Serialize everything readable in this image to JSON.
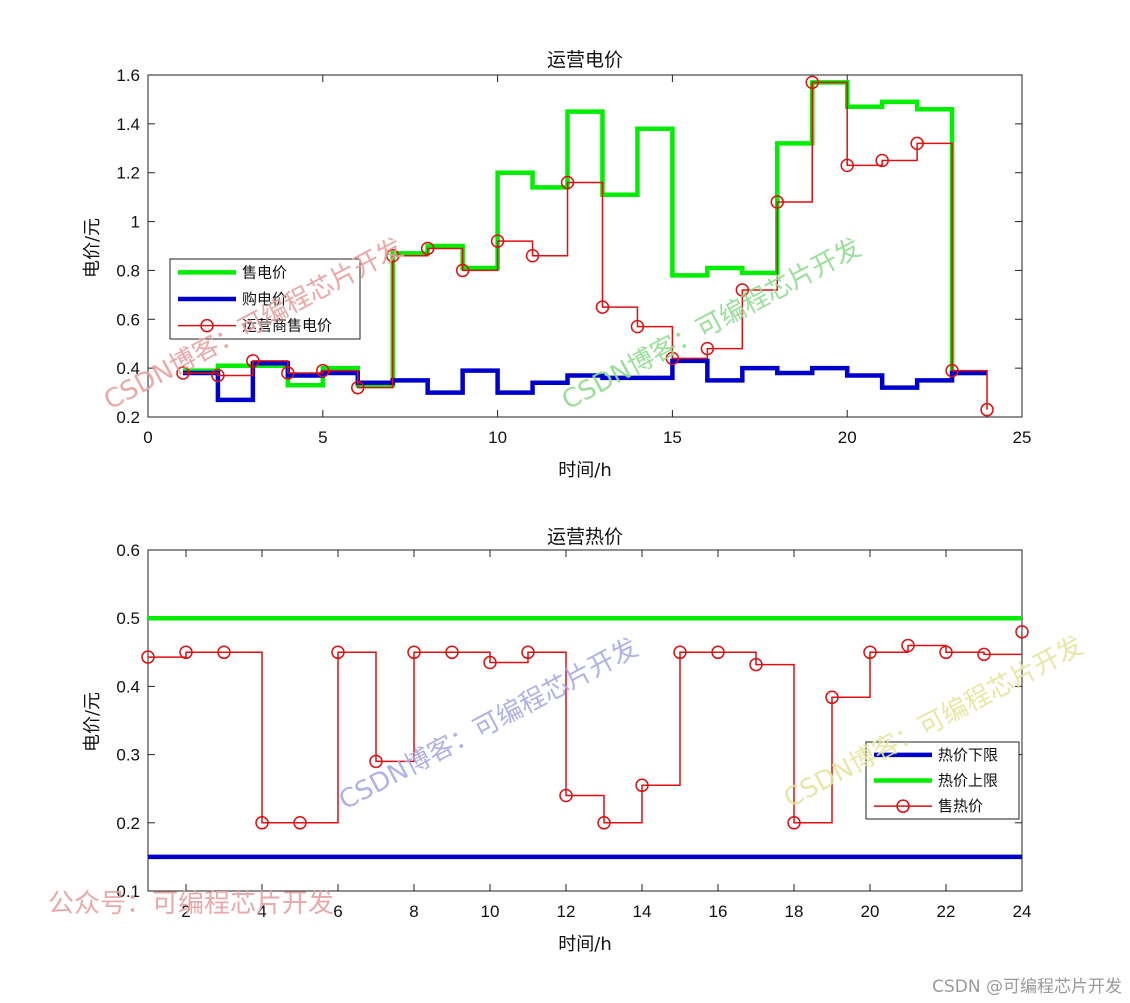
{
  "chart_data": [
    {
      "type": "line",
      "title": "运营电价",
      "xlabel": "时间/h",
      "ylabel": "电价/元",
      "xlim": [
        0,
        25
      ],
      "ylim": [
        0.2,
        1.6
      ],
      "xticks": [
        "0",
        "5",
        "10",
        "15",
        "20",
        "25"
      ],
      "yticks": [
        "0.2",
        "0.4",
        "0.6",
        "0.8",
        "1",
        "1.2",
        "1.4",
        "1.6"
      ],
      "grid": false,
      "legend_position": "left-middle",
      "x": [
        1,
        2,
        3,
        4,
        5,
        6,
        7,
        8,
        9,
        10,
        11,
        12,
        13,
        14,
        15,
        16,
        17,
        18,
        19,
        20,
        21,
        22,
        23,
        24
      ],
      "series": [
        {
          "name": "售电价",
          "style": "stairs",
          "color": "#00ee00",
          "values": [
            0.39,
            0.41,
            0.41,
            0.33,
            0.4,
            0.33,
            0.87,
            0.9,
            0.81,
            1.2,
            1.14,
            1.45,
            1.11,
            1.38,
            0.78,
            0.81,
            0.79,
            1.32,
            1.57,
            1.47,
            1.49,
            1.46,
            0.38,
            0.38
          ]
        },
        {
          "name": "购电价",
          "style": "stairs",
          "color": "#0000cc",
          "values": [
            0.38,
            0.27,
            0.42,
            0.37,
            0.38,
            0.34,
            0.35,
            0.3,
            0.39,
            0.3,
            0.34,
            0.37,
            0.36,
            0.36,
            0.43,
            0.35,
            0.4,
            0.38,
            0.4,
            0.37,
            0.32,
            0.35,
            0.38,
            0.38
          ]
        },
        {
          "name": "运营商售电价",
          "style": "stairs-markers",
          "color": "#dd1111",
          "values": [
            0.38,
            0.37,
            0.43,
            0.38,
            0.39,
            0.32,
            0.86,
            0.89,
            0.8,
            0.92,
            0.86,
            1.16,
            0.65,
            0.57,
            0.44,
            0.48,
            0.72,
            1.08,
            1.57,
            1.23,
            1.25,
            1.32,
            0.39,
            0.23
          ]
        }
      ]
    },
    {
      "type": "line",
      "title": "运营热价",
      "xlabel": "时间/h",
      "ylabel": "电价/元",
      "xlim": [
        1,
        24
      ],
      "ylim": [
        0.1,
        0.6
      ],
      "xticks": [
        "2",
        "4",
        "6",
        "8",
        "10",
        "12",
        "14",
        "16",
        "18",
        "20",
        "22",
        "24"
      ],
      "yticks": [
        "0.1",
        "0.2",
        "0.3",
        "0.4",
        "0.5",
        "0.6"
      ],
      "grid": false,
      "legend_position": "right-middle",
      "x": [
        1,
        2,
        3,
        4,
        5,
        6,
        7,
        8,
        9,
        10,
        11,
        12,
        13,
        14,
        15,
        16,
        17,
        18,
        19,
        20,
        21,
        22,
        23,
        24
      ],
      "series": [
        {
          "name": "热价下限",
          "style": "line",
          "color": "#0000cc",
          "values": [
            0.15,
            0.15,
            0.15,
            0.15,
            0.15,
            0.15,
            0.15,
            0.15,
            0.15,
            0.15,
            0.15,
            0.15,
            0.15,
            0.15,
            0.15,
            0.15,
            0.15,
            0.15,
            0.15,
            0.15,
            0.15,
            0.15,
            0.15,
            0.15
          ]
        },
        {
          "name": "热价上限",
          "style": "line",
          "color": "#00ee00",
          "values": [
            0.5,
            0.5,
            0.5,
            0.5,
            0.5,
            0.5,
            0.5,
            0.5,
            0.5,
            0.5,
            0.5,
            0.5,
            0.5,
            0.5,
            0.5,
            0.5,
            0.5,
            0.5,
            0.5,
            0.5,
            0.5,
            0.5,
            0.5,
            0.5
          ]
        },
        {
          "name": "售热价",
          "style": "stairs-markers",
          "color": "#dd1111",
          "values": [
            0.443,
            0.45,
            0.45,
            0.2,
            0.2,
            0.45,
            0.29,
            0.45,
            0.45,
            0.435,
            0.45,
            0.24,
            0.2,
            0.255,
            0.45,
            0.45,
            0.432,
            0.2,
            0.384,
            0.45,
            0.46,
            0.45,
            0.447,
            0.48
          ]
        }
      ]
    }
  ],
  "watermarks": [
    {
      "text": "CSDN博客：可编程芯片开发",
      "color": "#e8a0a0"
    },
    {
      "text": "CSDN博客：可编程芯片开发",
      "color": "#8fdc8f"
    },
    {
      "text": "CSDN博客：可编程芯片开发",
      "color": "#a9a9e6"
    },
    {
      "text": "CSDN博客：可编程芯片开发",
      "color": "#e4e49c"
    },
    {
      "text": "公众号：可编程芯片开发",
      "color": "#e8a0a0"
    }
  ],
  "footer": "CSDN @可编程芯片开发"
}
